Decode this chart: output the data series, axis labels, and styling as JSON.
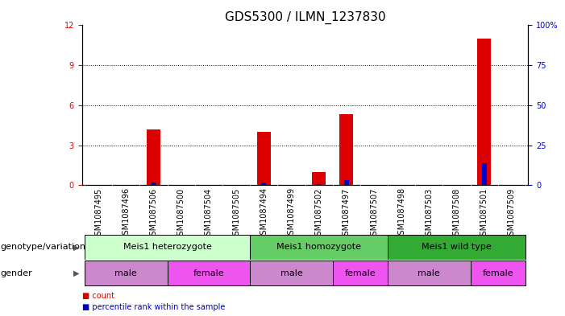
{
  "title": "GDS5300 / ILMN_1237830",
  "samples": [
    "GSM1087495",
    "GSM1087496",
    "GSM1087506",
    "GSM1087500",
    "GSM1087504",
    "GSM1087505",
    "GSM1087494",
    "GSM1087499",
    "GSM1087502",
    "GSM1087497",
    "GSM1087507",
    "GSM1087498",
    "GSM1087503",
    "GSM1087508",
    "GSM1087501",
    "GSM1087509"
  ],
  "count": [
    0,
    0,
    4.2,
    0,
    0,
    0,
    4.0,
    0,
    1.0,
    5.3,
    0,
    0,
    0,
    0,
    11.0,
    0
  ],
  "percentile": [
    0,
    0.4,
    1.8,
    0,
    0,
    0,
    1.8,
    0,
    0.6,
    3.0,
    0.3,
    0,
    0,
    0,
    13.5,
    0
  ],
  "count_color": "#dd0000",
  "percentile_color": "#0000cc",
  "ylim_left": [
    0,
    12
  ],
  "ylim_right": [
    0,
    100
  ],
  "yticks_left": [
    0,
    3,
    6,
    9,
    12
  ],
  "yticks_right": [
    0,
    25,
    50,
    75,
    100
  ],
  "background_color": "#ffffff",
  "xtick_bg": "#cccccc",
  "genotype_groups": [
    {
      "label": "Meis1 heterozygote",
      "start": 0,
      "end": 5,
      "color": "#ccffcc"
    },
    {
      "label": "Meis1 homozygote",
      "start": 6,
      "end": 10,
      "color": "#66cc66"
    },
    {
      "label": "Meis1 wild type",
      "start": 11,
      "end": 15,
      "color": "#33aa33"
    }
  ],
  "gender_groups": [
    {
      "label": "male",
      "start": 0,
      "end": 2,
      "color": "#cc88cc"
    },
    {
      "label": "female",
      "start": 3,
      "end": 5,
      "color": "#ee55ee"
    },
    {
      "label": "male",
      "start": 6,
      "end": 8,
      "color": "#cc88cc"
    },
    {
      "label": "female",
      "start": 9,
      "end": 10,
      "color": "#ee55ee"
    },
    {
      "label": "male",
      "start": 11,
      "end": 13,
      "color": "#cc88cc"
    },
    {
      "label": "female",
      "start": 14,
      "end": 15,
      "color": "#ee55ee"
    }
  ],
  "genotype_label": "genotype/variation",
  "gender_label": "gender",
  "legend_count": "count",
  "legend_percentile": "percentile rank within the sample",
  "tick_color_left": "#dd0000",
  "tick_color_right": "#0000cc",
  "title_fontsize": 11,
  "tick_fontsize": 7,
  "label_fontsize": 8,
  "band_fontsize": 8,
  "right_ytick_labels": [
    "0",
    "25",
    "50",
    "75",
    "100%"
  ]
}
